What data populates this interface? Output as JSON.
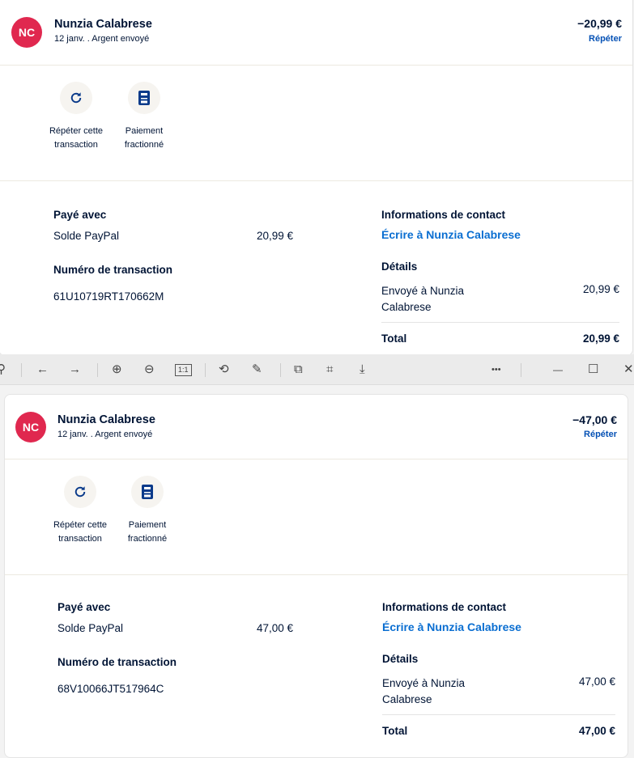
{
  "transactions": [
    {
      "avatar": "NC",
      "name": "Nunzia Calabrese",
      "subtitle": "12 janv. . Argent envoyé",
      "amount": "−20,99 €",
      "repeat": "Répéter",
      "actions": [
        {
          "label": "Répéter cette transaction",
          "icon": "refresh-icon"
        },
        {
          "label": "Paiement fractionné",
          "icon": "calculator-icon"
        }
      ],
      "paid_with_label": "Payé avec",
      "paid_with_method": "Solde PayPal",
      "paid_with_amount": "20,99 €",
      "txn_label": "Numéro de transaction",
      "txn_id": "61U10719RT170662M",
      "contact_label": "Informations de contact",
      "contact_link": "Écrire à Nunzia Calabrese",
      "details_label": "Détails",
      "sent_to": "Envoyé à Nunzia Calabrese",
      "sent_amount": "20,99 €",
      "total_label": "Total",
      "total": "20,99 €"
    },
    {
      "avatar": "NC",
      "name": "Nunzia Calabrese",
      "subtitle": "12 janv. . Argent envoyé",
      "amount": "−47,00 €",
      "repeat": "Répéter",
      "actions": [
        {
          "label": "Répéter cette transaction",
          "icon": "refresh-icon"
        },
        {
          "label": "Paiement fractionné",
          "icon": "calculator-icon"
        }
      ],
      "paid_with_label": "Payé avec",
      "paid_with_method": "Solde PayPal",
      "paid_with_amount": "47,00 €",
      "txn_label": "Numéro de transaction",
      "txn_id": "68V10066JT517964C",
      "contact_label": "Informations de contact",
      "contact_link": "Écrire à Nunzia Calabrese",
      "details_label": "Détails",
      "sent_to": "Envoyé à Nunzia Calabrese",
      "sent_amount": "47,00 €",
      "total_label": "Total",
      "total": "47,00 €"
    }
  ],
  "toolbar": {
    "more": "•••",
    "minimize": "—",
    "maximize": "☐",
    "close": "✕"
  }
}
